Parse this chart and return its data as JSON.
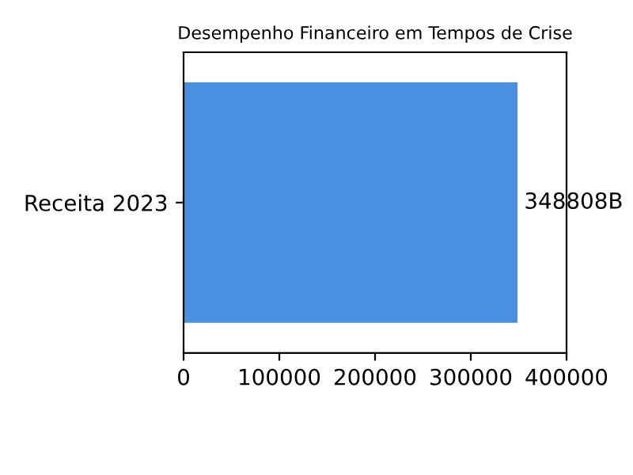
{
  "chart_data": {
    "type": "bar",
    "orientation": "horizontal",
    "title": "Desempenho Financeiro em Tempos de Crise",
    "categories": [
      "Receita 2023"
    ],
    "values": [
      348808
    ],
    "value_labels": [
      "348808B"
    ],
    "color": "#4a90e2",
    "xlim": [
      0,
      400000
    ],
    "xticks": [
      0,
      100000,
      200000,
      300000,
      400000
    ],
    "grid": false
  }
}
